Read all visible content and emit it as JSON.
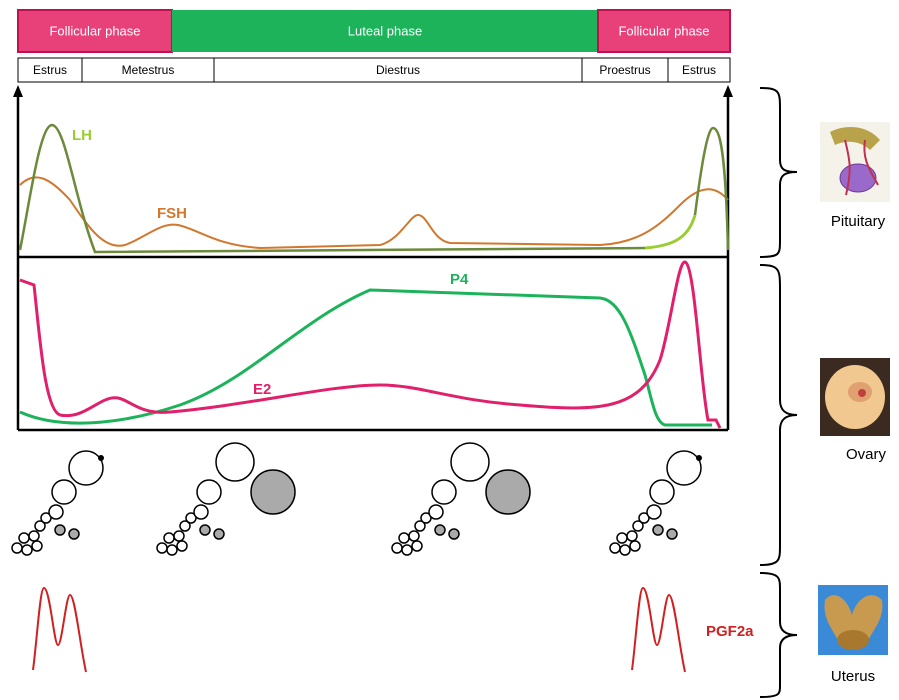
{
  "phases": [
    "Follicular phase",
    "Luteal phase",
    "Follicular phase"
  ],
  "stages": [
    "Estrus",
    "Metestrus",
    "Diestrus",
    "Proestrus",
    "Estrus"
  ],
  "hormones": {
    "lh": "LH",
    "fsh": "FSH",
    "p4": "P4",
    "e2": "E2",
    "pgf2a": "PGF2a"
  },
  "organs": [
    "Pituitary",
    "Ovary",
    "Uterus"
  ]
}
